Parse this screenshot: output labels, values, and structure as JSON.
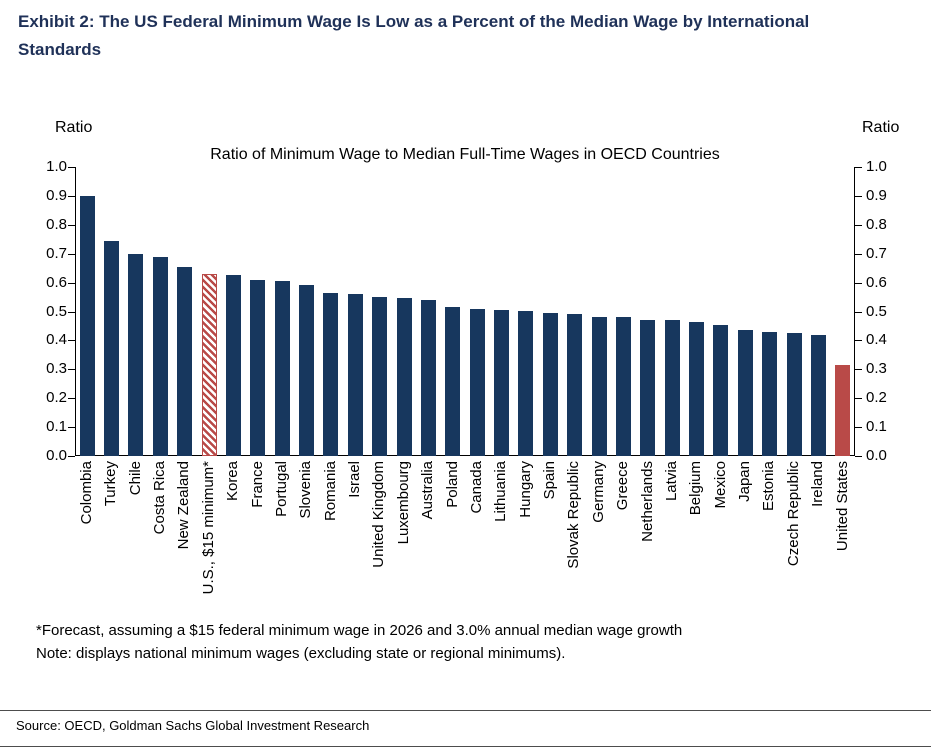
{
  "header": {
    "title_line1": "Exhibit 2: The US Federal Minimum Wage Is Low as a Percent of the Median Wage by International",
    "title_line2": "Standards"
  },
  "chart": {
    "axis_label_left": "Ratio",
    "axis_label_right": "Ratio"
  },
  "chart_data": {
    "type": "bar",
    "title": "Ratio of Minimum Wage to Median Full-Time Wages in OECD Countries",
    "xlabel": "",
    "ylabel": "Ratio",
    "ylim": [
      0,
      1.0
    ],
    "yticks": [
      0,
      0.1,
      0.2,
      0.3,
      0.4,
      0.5,
      0.6,
      0.7,
      0.8,
      0.9,
      1.0
    ],
    "grid": false,
    "legend": "none",
    "categories": [
      "Colombia",
      "Turkey",
      "Chile",
      "Costa Rica",
      "New Zealand",
      "U.S., $15 minimum*",
      "Korea",
      "France",
      "Portugal",
      "Slovenia",
      "Romania",
      "Israel",
      "United Kingdom",
      "Luxembourg",
      "Australia",
      "Poland",
      "Canada",
      "Lithuania",
      "Hungary",
      "Spain",
      "Slovak Republic",
      "Germany",
      "Greece",
      "Netherlands",
      "Latvia",
      "Belgium",
      "Mexico",
      "Japan",
      "Estonia",
      "Czech Republic",
      "Ireland",
      "United States"
    ],
    "values": [
      0.9,
      0.745,
      0.7,
      0.69,
      0.655,
      0.63,
      0.625,
      0.61,
      0.605,
      0.59,
      0.565,
      0.56,
      0.55,
      0.545,
      0.54,
      0.515,
      0.51,
      0.505,
      0.5,
      0.495,
      0.49,
      0.48,
      0.48,
      0.47,
      0.47,
      0.465,
      0.455,
      0.435,
      0.43,
      0.425,
      0.42,
      0.315
    ],
    "bar_color_default": "#17375e",
    "bar_color_highlight": "#b94a48",
    "highlight_hatched": "U.S., $15 minimum*",
    "highlight_solid": "United States"
  },
  "footnotes": {
    "line1": "*Forecast, assuming a $15 federal minimum wage in 2026 and 3.0% annual median wage growth",
    "line2": "Note: displays national minimum wages (excluding state or regional minimums)."
  },
  "source": {
    "text": "Source: OECD, Goldman Sachs Global Investment Research"
  }
}
